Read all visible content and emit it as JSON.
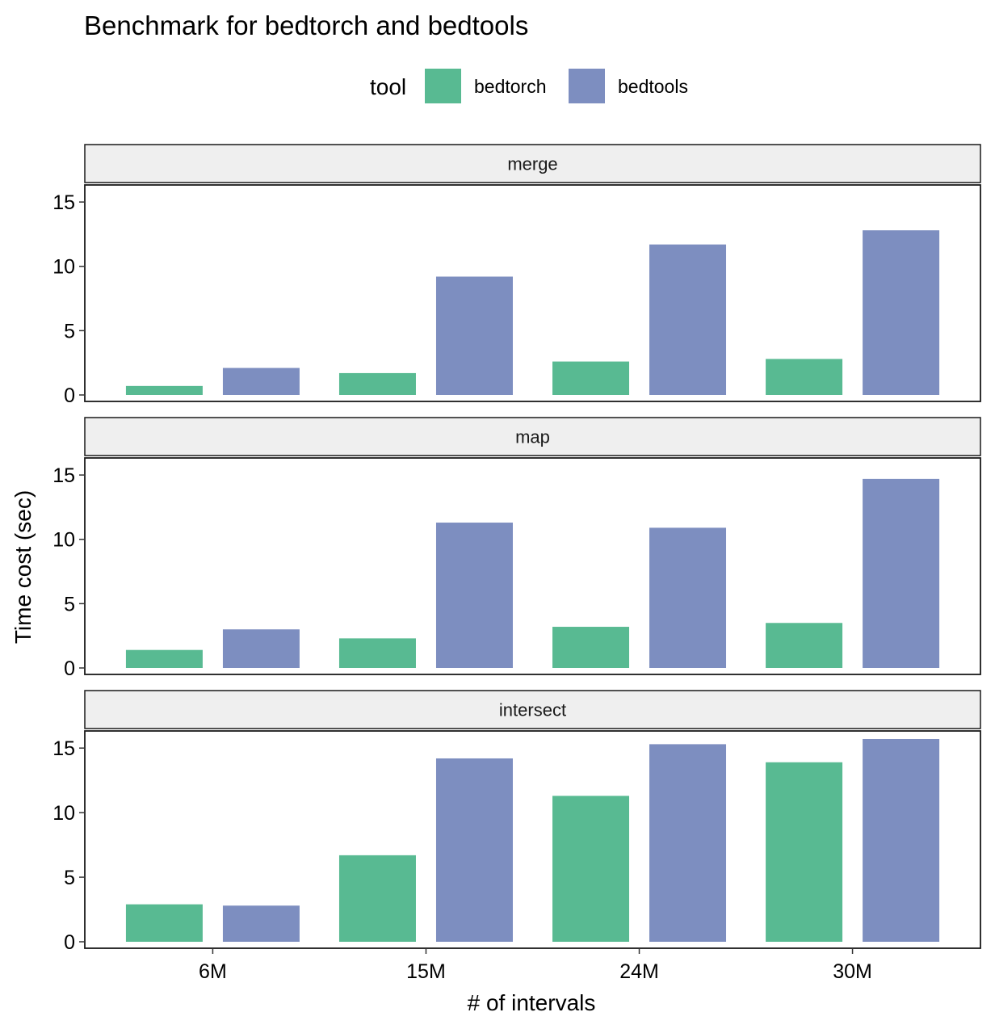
{
  "chart_data": {
    "type": "bar",
    "title": "Benchmark for bedtorch and bedtools",
    "xlabel": "# of intervals",
    "ylabel": "Time cost (sec)",
    "categories": [
      "6M",
      "15M",
      "24M",
      "30M"
    ],
    "ylim": [
      0,
      16.2
    ],
    "yticks": [
      0,
      5,
      10,
      15
    ],
    "legend": {
      "title": "tool",
      "position": "top",
      "entries": [
        "bedtorch",
        "bedtools"
      ]
    },
    "colors": {
      "bedtorch": "#58BA92",
      "bedtools": "#7D8EC0"
    },
    "facets": [
      {
        "name": "merge",
        "series": [
          {
            "name": "bedtorch",
            "values": [
              0.7,
              1.7,
              2.6,
              2.8
            ]
          },
          {
            "name": "bedtools",
            "values": [
              2.1,
              9.2,
              11.7,
              12.8
            ]
          }
        ]
      },
      {
        "name": "map",
        "series": [
          {
            "name": "bedtorch",
            "values": [
              1.4,
              2.3,
              3.2,
              3.5
            ]
          },
          {
            "name": "bedtools",
            "values": [
              3.0,
              11.3,
              10.9,
              14.7
            ]
          }
        ]
      },
      {
        "name": "intersect",
        "series": [
          {
            "name": "bedtorch",
            "values": [
              2.9,
              6.7,
              11.3,
              13.9
            ]
          },
          {
            "name": "bedtools",
            "values": [
              2.8,
              14.2,
              15.3,
              15.7
            ]
          }
        ]
      }
    ]
  }
}
